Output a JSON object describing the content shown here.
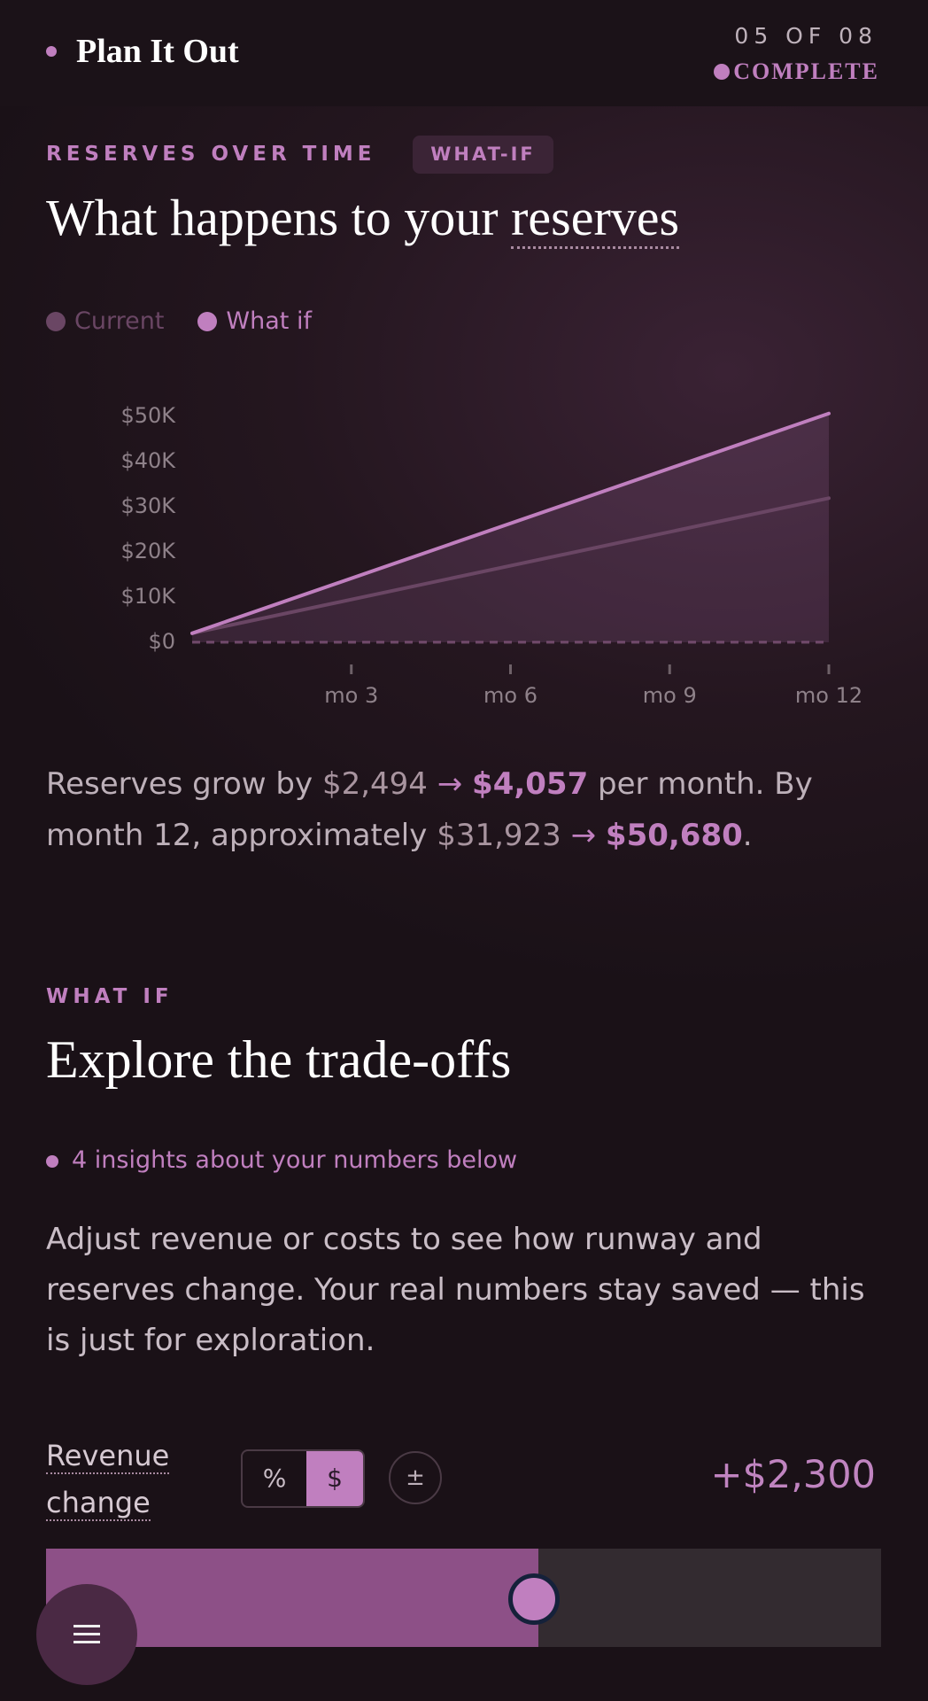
{
  "header": {
    "title": "Plan It Out",
    "progress": "05 OF 08",
    "status": "COMPLETE"
  },
  "reserves": {
    "eyebrow": "RESERVES OVER TIME",
    "badge": "WHAT-IF",
    "heading": "What happens to your",
    "heading_term": "reserves",
    "summary": {
      "prefix": "Reserves grow by",
      "monthly_current": "$2,494",
      "arrow": "→",
      "monthly_whatif": "$4,057",
      "middle": "per month. By month 12, approximately",
      "total_current": "$31,923",
      "total_whatif": "$50,680",
      "end": "."
    }
  },
  "chart_data": {
    "type": "line",
    "x": [
      0,
      12
    ],
    "series": [
      {
        "name": "Current",
        "color": "#6a4664",
        "values": [
          2000,
          31923
        ]
      },
      {
        "name": "What if",
        "color": "#c07fbf",
        "values": [
          2000,
          50680
        ],
        "area": true
      }
    ],
    "xlim": [
      0,
      12
    ],
    "xticks": [
      {
        "value": 3,
        "label": "mo 3"
      },
      {
        "value": 6,
        "label": "mo 6"
      },
      {
        "value": 9,
        "label": "mo 9"
      },
      {
        "value": 12,
        "label": "mo 12"
      }
    ],
    "ylim": [
      0,
      52000
    ],
    "yticks": [
      {
        "value": 0,
        "label": "$0"
      },
      {
        "value": 10000,
        "label": "$10K"
      },
      {
        "value": 20000,
        "label": "$20K"
      },
      {
        "value": 30000,
        "label": "$30K"
      },
      {
        "value": 40000,
        "label": "$40K"
      },
      {
        "value": 50000,
        "label": "$50K"
      }
    ]
  },
  "what_if": {
    "eyebrow": "WHAT IF",
    "heading": "Explore the trade-offs",
    "insights": "4 insights about your numbers below",
    "body": "Adjust revenue or costs to see how runway and reserves change. Your real numbers stay saved — this is just for exploration.",
    "control": {
      "label": "Revenue change",
      "unit_percent": "%",
      "unit_dollar": "$",
      "sign": "±",
      "value": "+$2,300"
    }
  }
}
